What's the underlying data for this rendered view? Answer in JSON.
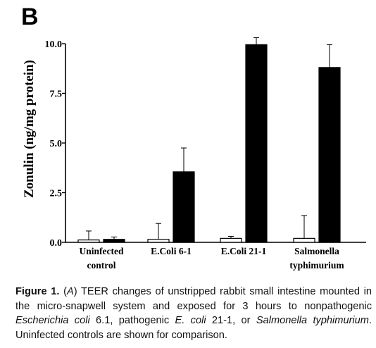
{
  "panel_label": "B",
  "chart_data": {
    "type": "bar",
    "ylabel": "Zonulin (ng/mg protein)",
    "xlabel": "",
    "ylim": [
      0,
      10
    ],
    "yticks": [
      0,
      2.5,
      5,
      7.5,
      10
    ],
    "ytick_labels": [
      "0.0",
      "2.5",
      "5.0",
      "7.5",
      "10.0"
    ],
    "categories": [
      [
        "Uninfected",
        "control"
      ],
      [
        "E.Coli 6-1"
      ],
      [
        "E.Coli 21-1"
      ],
      [
        "Salmonella",
        "typhimurium"
      ]
    ],
    "series": [
      {
        "fill": "#ffffff",
        "values": [
          0.12,
          0.15,
          0.2,
          0.2
        ],
        "errors": [
          0.45,
          0.8,
          0.1,
          1.15
        ]
      },
      {
        "fill": "#000000",
        "values": [
          0.15,
          3.55,
          9.95,
          8.8
        ],
        "errors": [
          0.12,
          1.2,
          0.35,
          1.15
        ]
      }
    ],
    "grid": false,
    "legend": "none"
  },
  "caption": {
    "label": "Figure 1.",
    "segments": [
      {
        "text": " (",
        "style": "normal"
      },
      {
        "text": "A",
        "style": "italic"
      },
      {
        "text": ") TEER changes of unstripped rabbit small intestine mounted in the micro-snapwell system and exposed for 3 hours to nonpathogenic ",
        "style": "normal"
      },
      {
        "text": "Escherichia coli",
        "style": "italic"
      },
      {
        "text": " 6.1, pathogenic ",
        "style": "normal"
      },
      {
        "text": "E. coli",
        "style": "italic"
      },
      {
        "text": " 21-1, or ",
        "style": "normal"
      },
      {
        "text": "Salmonella typhimurium",
        "style": "italic"
      },
      {
        "text": ". Uninfected controls are shown for comparison.",
        "style": "normal"
      }
    ]
  }
}
